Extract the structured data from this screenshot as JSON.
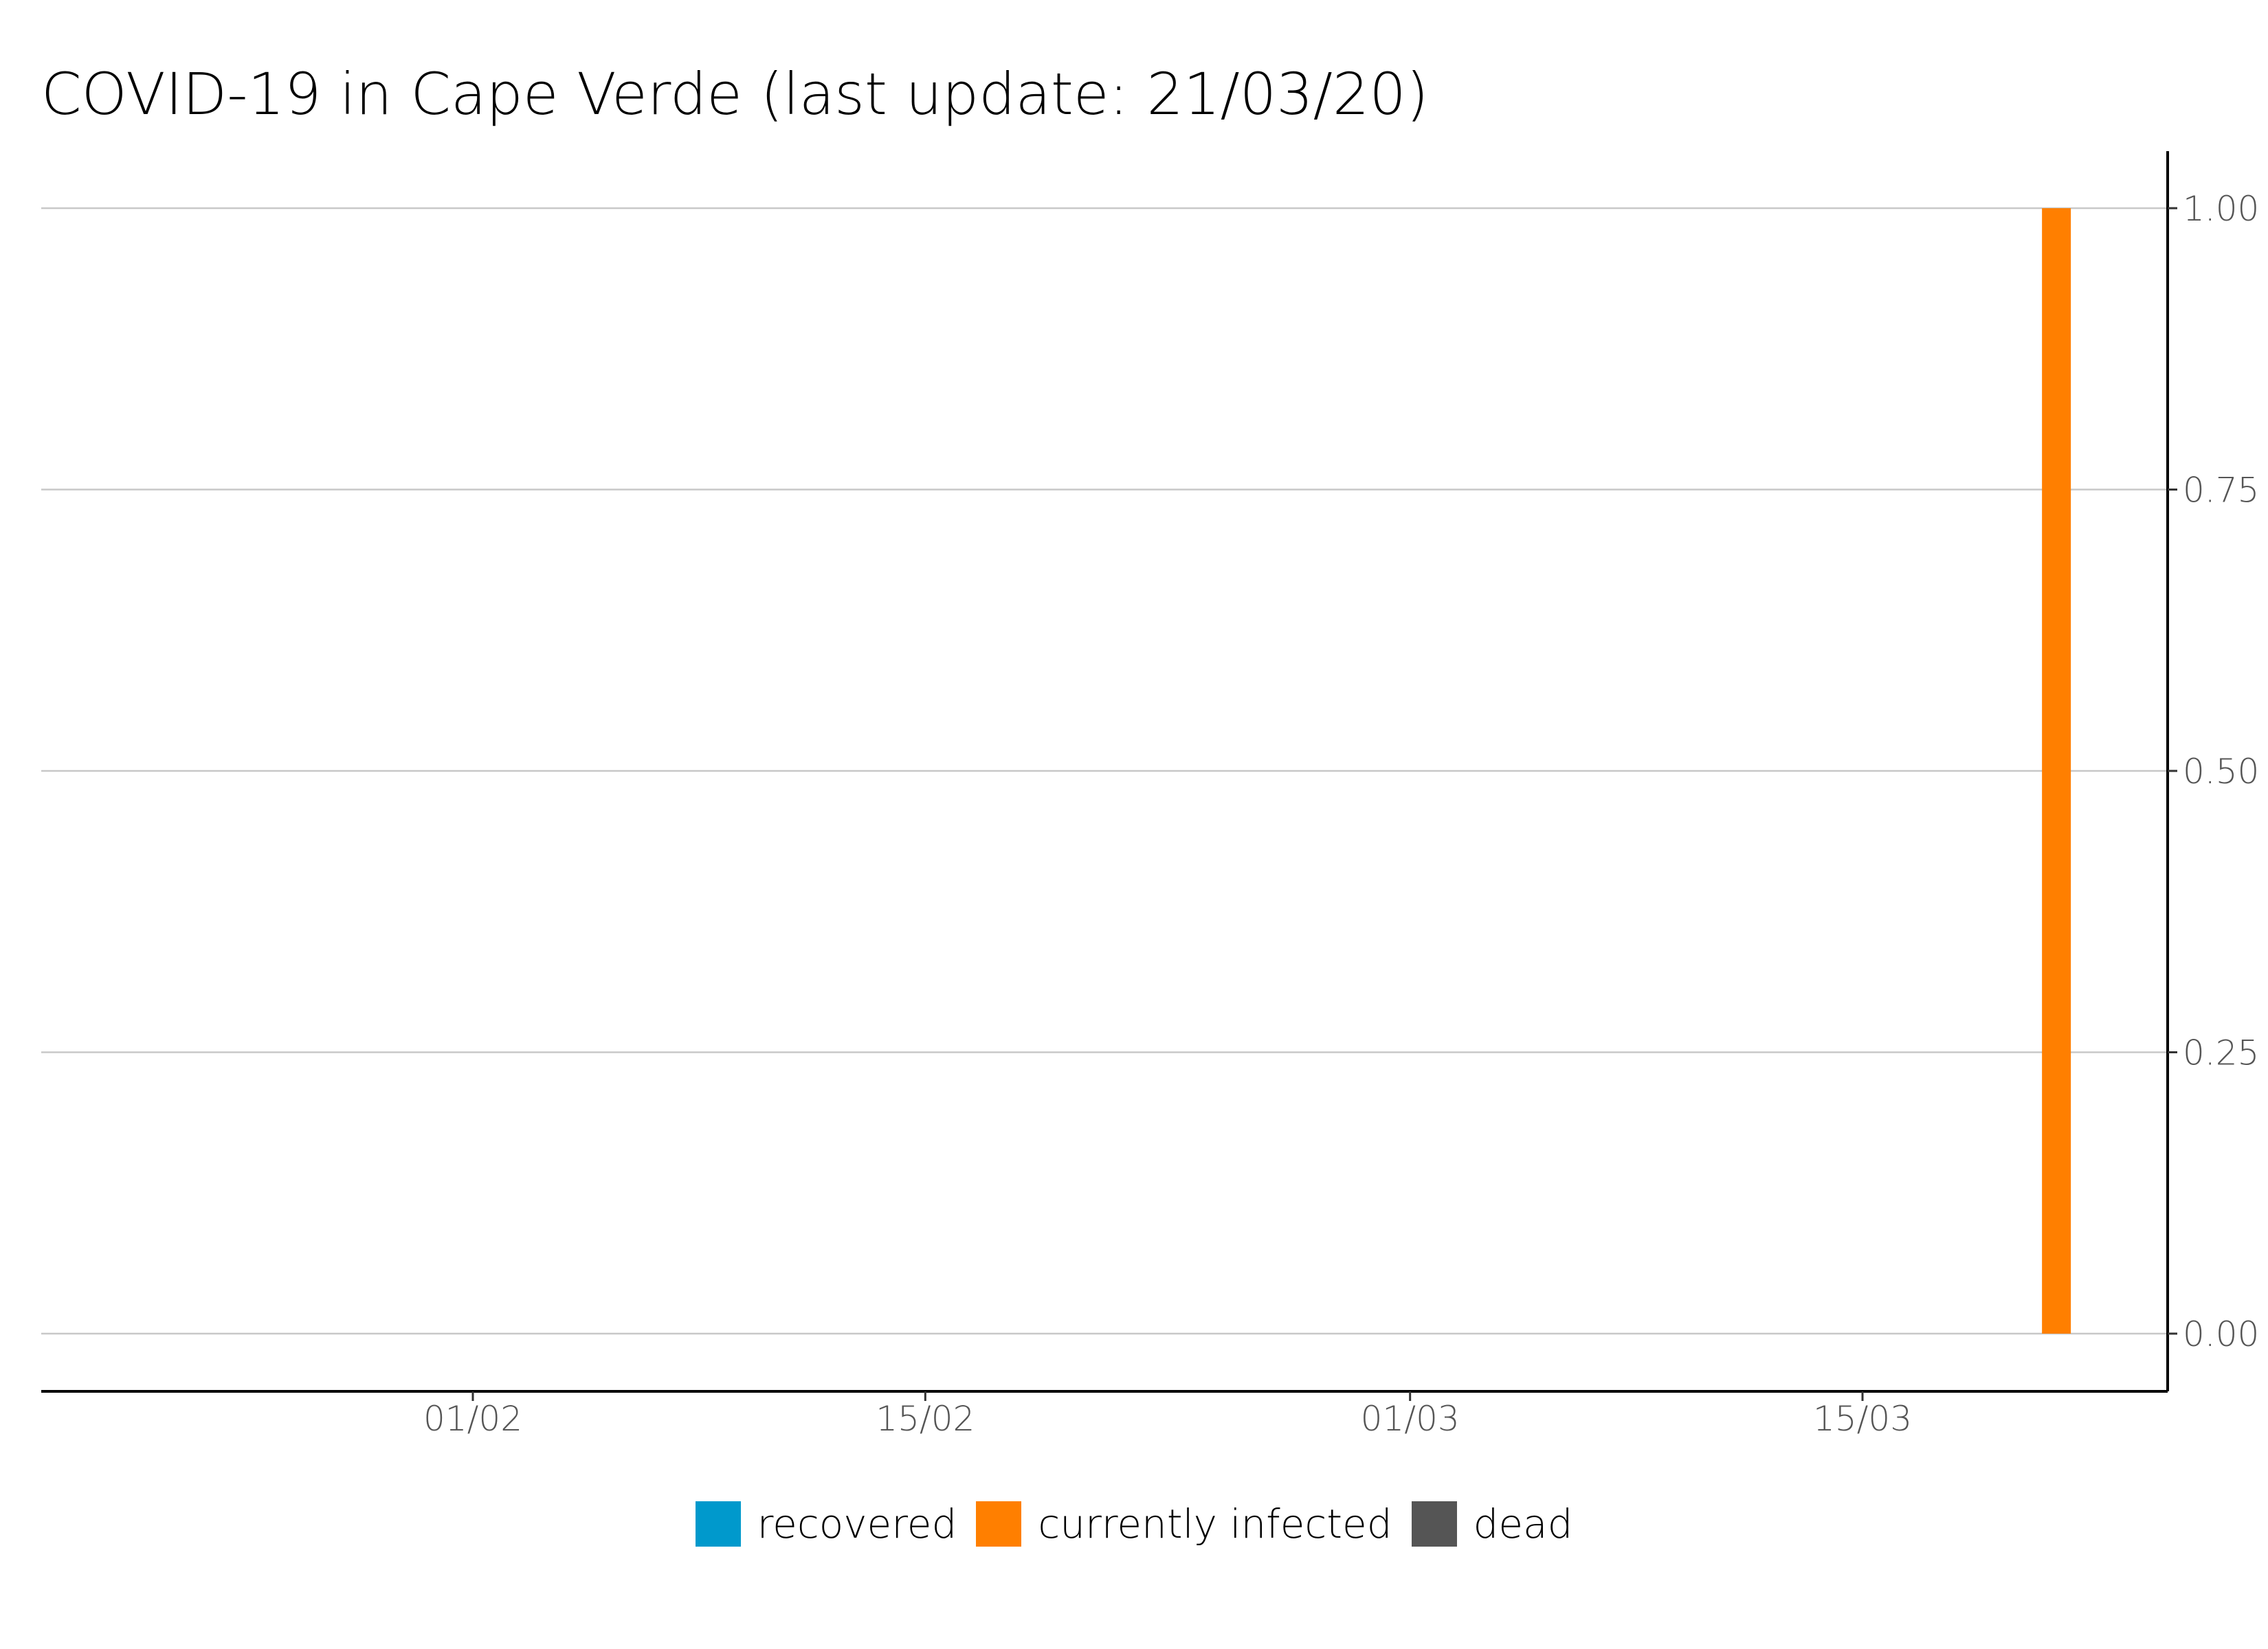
{
  "chart_data": {
    "type": "bar",
    "title": "COVID-19 in Cape Verde (last update: 21/03/20)",
    "xlabel": "",
    "ylabel": "",
    "x_tick_labels": [
      "01/02",
      "15/02",
      "01/03",
      "15/03"
    ],
    "y_tick_labels": [
      "0.00",
      "0.25",
      "0.50",
      "0.75",
      "1.00"
    ],
    "ylim": [
      0,
      1
    ],
    "grid": true,
    "legend_position": "bottom",
    "x": [
      "21/03"
    ],
    "series": [
      {
        "name": "recovered",
        "color": "#0099CC",
        "values": [
          0
        ]
      },
      {
        "name": "currently infected",
        "color": "#FF7F00",
        "values": [
          1
        ]
      },
      {
        "name": "dead",
        "color": "#555555",
        "values": [
          0
        ]
      }
    ]
  }
}
